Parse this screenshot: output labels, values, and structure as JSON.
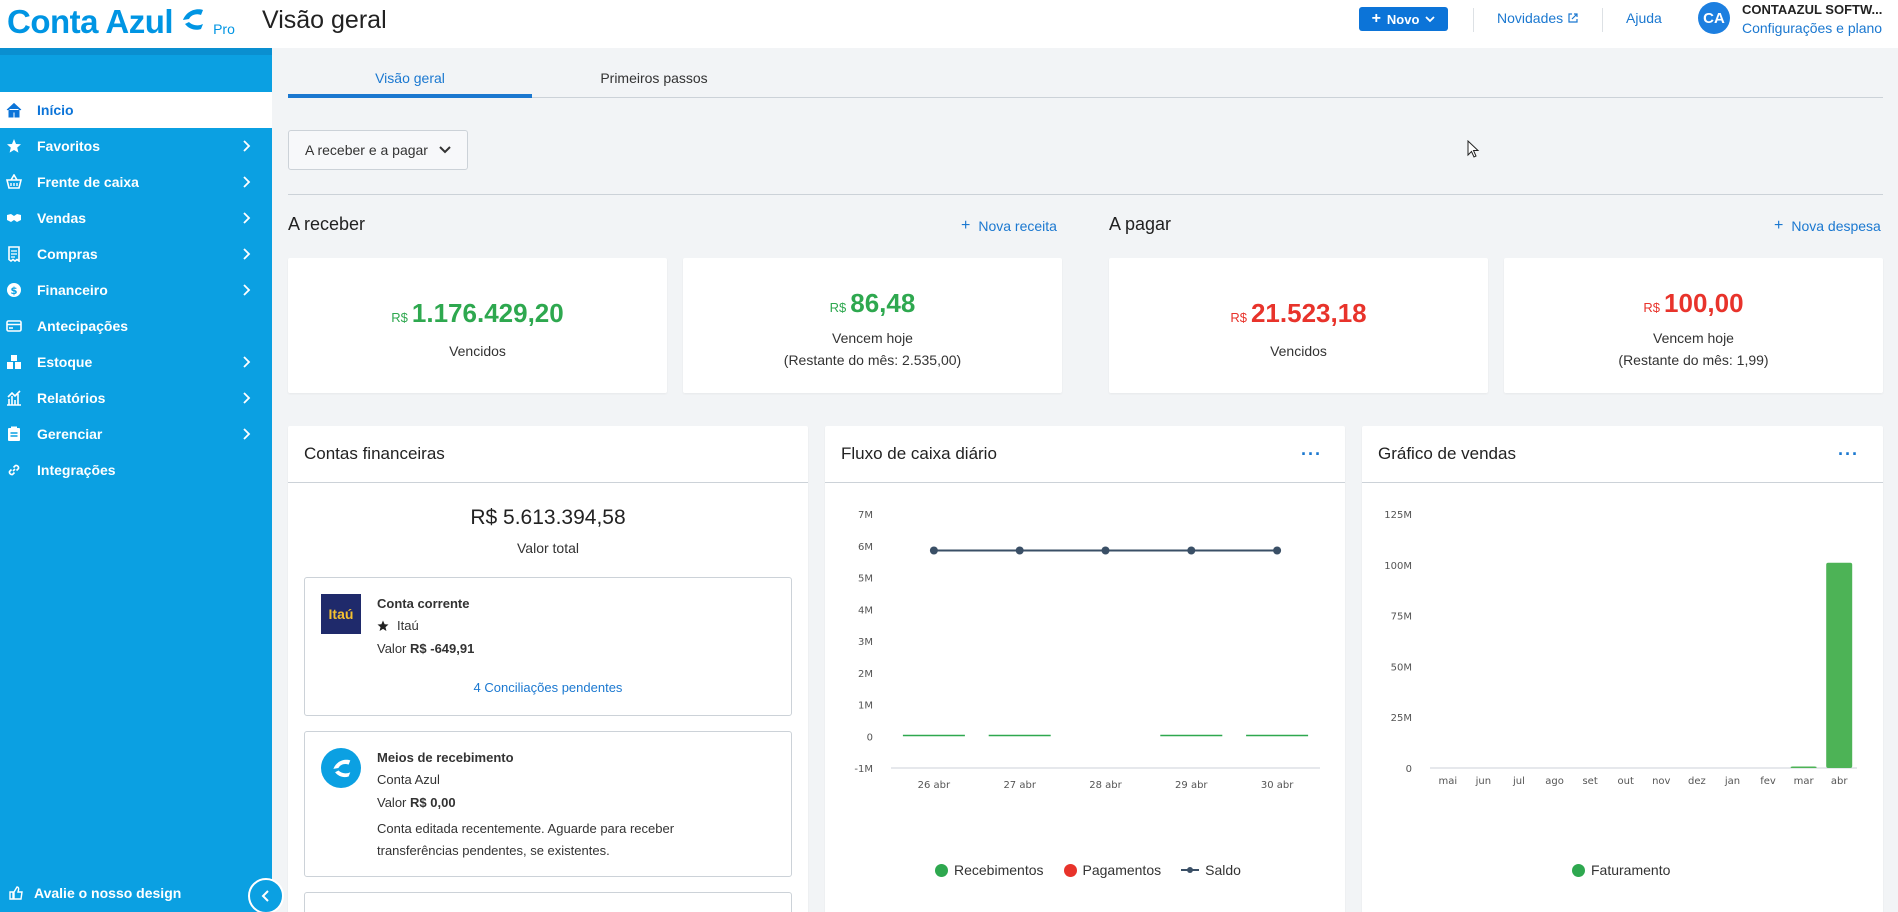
{
  "app": {
    "logo_text": "Conta Azul",
    "logo_badge": "Pro",
    "page_title": "Visão geral"
  },
  "header": {
    "new_button": "Novo",
    "news_link": "Novidades",
    "help_link": "Ajuda",
    "avatar_initials": "CA",
    "company_name": "CONTAAZUL SOFTW...",
    "company_settings": "Configurações e plano"
  },
  "sidebar": {
    "items": [
      {
        "label": "Início",
        "icon": "home-icon",
        "active": true,
        "chevron": false
      },
      {
        "label": "Favoritos",
        "icon": "star-icon",
        "chevron": true
      },
      {
        "label": "Frente de caixa",
        "icon": "basket-icon",
        "chevron": true
      },
      {
        "label": "Vendas",
        "icon": "handshake-icon",
        "chevron": true
      },
      {
        "label": "Compras",
        "icon": "receipt-icon",
        "chevron": true
      },
      {
        "label": "Financeiro",
        "icon": "money-icon",
        "chevron": true
      },
      {
        "label": "Antecipações",
        "icon": "card-icon",
        "chevron": false
      },
      {
        "label": "Estoque",
        "icon": "boxes-icon",
        "chevron": true
      },
      {
        "label": "Relatórios",
        "icon": "chart-icon",
        "chevron": true
      },
      {
        "label": "Gerenciar",
        "icon": "clipboard-icon",
        "chevron": true
      },
      {
        "label": "Integrações",
        "icon": "link-icon",
        "chevron": false
      }
    ],
    "feedback": "Avalie o nosso design"
  },
  "tabs": [
    {
      "label": "Visão geral",
      "active": true
    },
    {
      "label": "Primeiros passos",
      "active": false
    }
  ],
  "filter": {
    "label": "A receber e a pagar"
  },
  "receivable": {
    "title": "A receber",
    "action": "Nova receita",
    "cards": [
      {
        "currency": "R$",
        "value": "1.176.429,20",
        "label": "Vencidos",
        "sub": ""
      },
      {
        "currency": "R$",
        "value": "86,48",
        "label": "Vencem hoje",
        "sub": "(Restante do mês: 2.535,00)"
      }
    ]
  },
  "payable": {
    "title": "A pagar",
    "action": "Nova despesa",
    "cards": [
      {
        "currency": "R$",
        "value": "21.523,18",
        "label": "Vencidos",
        "sub": ""
      },
      {
        "currency": "R$",
        "value": "100,00",
        "label": "Vencem hoje",
        "sub": "(Restante do mês: 1,99)"
      }
    ]
  },
  "accounts": {
    "title": "Contas financeiras",
    "total_value": "R$ 5.613.394,58",
    "total_label": "Valor total",
    "items": [
      {
        "bank_logo_text": "Itaú",
        "name": "Conta corrente",
        "bank": "Itaú",
        "value_label": "Valor",
        "value": "R$ -649,91",
        "link": "4 Conciliações pendentes"
      },
      {
        "name": "Meios de recebimento",
        "bank": "Conta Azul",
        "value_label": "Valor",
        "value": "R$ 0,00",
        "note": "Conta editada recentemente. Aguarde para receber transferências pendentes, se existentes."
      }
    ]
  },
  "cashflow": {
    "title": "Fluxo de caixa diário",
    "menu": "···"
  },
  "sales": {
    "title": "Gráfico de vendas",
    "menu": "···"
  },
  "colors": {
    "brand": "#0ba0e2",
    "primary": "#0c74d8",
    "link": "#1b78d0",
    "green": "#2ea84f",
    "red": "#e8332b",
    "saldo": "#3a4f66"
  },
  "chart_data": [
    {
      "type": "line",
      "title": "Fluxo de caixa diário",
      "categories": [
        "26 abr",
        "27 abr",
        "28 abr",
        "29 abr",
        "30 abr"
      ],
      "yticks": [
        "7M",
        "6M",
        "5M",
        "4M",
        "3M",
        "2M",
        "1M",
        "0",
        "-1M"
      ],
      "ylim": [
        -1000000,
        7000000
      ],
      "series": [
        {
          "name": "Recebimentos",
          "type": "bar",
          "values": [
            1000,
            1000,
            0,
            1000,
            1000
          ]
        },
        {
          "name": "Pagamentos",
          "type": "bar",
          "values": [
            0,
            0,
            0,
            0,
            0
          ]
        },
        {
          "name": "Saldo",
          "type": "line",
          "values": [
            5850000,
            5850000,
            5850000,
            5850000,
            5850000
          ]
        }
      ],
      "legend": "bottom"
    },
    {
      "type": "bar",
      "title": "Gráfico de vendas",
      "categories": [
        "mai",
        "jun",
        "jul",
        "ago",
        "set",
        "out",
        "nov",
        "dez",
        "jan",
        "fev",
        "mar",
        "abr"
      ],
      "yticks": [
        "125M",
        "100M",
        "75M",
        "50M",
        "25M",
        "0"
      ],
      "ylim": [
        0,
        125000000
      ],
      "series": [
        {
          "name": "Faturamento",
          "values": [
            0,
            0,
            0,
            0,
            0,
            0,
            0,
            0,
            0,
            0,
            300000,
            101000000
          ]
        }
      ],
      "legend": "bottom"
    }
  ]
}
